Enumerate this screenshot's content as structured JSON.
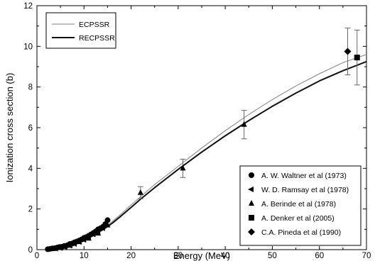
{
  "chart_data": {
    "type": "line",
    "xlabel": "Energy (MeV)",
    "ylabel": "Ionization cross section (b)",
    "xlim": [
      0,
      70
    ],
    "ylim": [
      0,
      12
    ],
    "x_ticks": [
      0,
      10,
      20,
      30,
      40,
      50,
      60,
      70
    ],
    "y_ticks": [
      0,
      2,
      4,
      6,
      8,
      10,
      12
    ],
    "x_tick_labels": [
      "0",
      "10",
      "20",
      "30",
      "40",
      "50",
      "60",
      "70"
    ],
    "y_tick_labels": [
      "0",
      "2",
      "4",
      "6",
      "8",
      "10",
      "12"
    ],
    "grid": false,
    "curves": [
      {
        "name": "ECPSSR",
        "style": "thin",
        "color": "#808080",
        "x": [
          2,
          3,
          4,
          5,
          6,
          8,
          10,
          12,
          14,
          16,
          18,
          20,
          22,
          25,
          30,
          35,
          40,
          45,
          50,
          55,
          60,
          65,
          70
        ],
        "y": [
          0.0,
          0.03,
          0.07,
          0.12,
          0.18,
          0.33,
          0.52,
          0.74,
          1.02,
          1.38,
          1.78,
          2.2,
          2.6,
          3.2,
          4.1,
          5.0,
          5.85,
          6.65,
          7.38,
          8.05,
          8.65,
          9.2,
          9.6
        ]
      },
      {
        "name": "RECPSSR",
        "style": "thick",
        "color": "#111111",
        "x": [
          2,
          3,
          4,
          5,
          6,
          8,
          10,
          12,
          14,
          16,
          18,
          20,
          22,
          25,
          30,
          35,
          40,
          45,
          50,
          55,
          60,
          65,
          70
        ],
        "y": [
          0.0,
          0.03,
          0.07,
          0.12,
          0.18,
          0.33,
          0.52,
          0.72,
          0.98,
          1.3,
          1.68,
          2.08,
          2.48,
          3.05,
          3.95,
          4.8,
          5.6,
          6.35,
          7.05,
          7.7,
          8.3,
          8.8,
          9.25
        ]
      }
    ],
    "series": [
      {
        "name": "A. W. Waltner et al (1973)",
        "marker": "circle",
        "x": [
          2.3,
          2.8,
          3.3,
          3.8,
          4.3,
          4.8,
          5.3,
          5.8,
          6.5,
          7.0,
          7.5,
          8.0,
          8.5,
          9.0,
          9.5,
          10.0,
          10.5,
          11.0,
          11.5,
          12.0,
          12.5,
          13.0,
          13.5,
          14.0,
          14.5,
          15.0
        ],
        "y": [
          0.02,
          0.04,
          0.06,
          0.07,
          0.1,
          0.13,
          0.14,
          0.18,
          0.22,
          0.28,
          0.3,
          0.36,
          0.4,
          0.45,
          0.5,
          0.58,
          0.62,
          0.68,
          0.75,
          0.82,
          0.9,
          1.0,
          1.05,
          1.12,
          1.25,
          1.45
        ]
      },
      {
        "name": "W. D. Ramsay et al (1978)",
        "marker": "triangle-left",
        "x": [
          4.0,
          5.0,
          6.0,
          7.0,
          8.0,
          9.0,
          10.0,
          11.0,
          12.0,
          13.0,
          14.0
        ],
        "y": [
          0.05,
          0.08,
          0.12,
          0.2,
          0.28,
          0.38,
          0.48,
          0.6,
          0.75,
          0.9,
          1.05
        ]
      },
      {
        "name": "A. Berinde et al (1978)",
        "marker": "triangle-up",
        "x": [
          5.0,
          7.0,
          9.0,
          11.0,
          13.0,
          15.0,
          22.0,
          31.0,
          44.0
        ],
        "y": [
          0.1,
          0.2,
          0.38,
          0.55,
          0.8,
          1.2,
          2.8,
          4.0,
          6.15
        ],
        "err": [
          0,
          0,
          0,
          0,
          0,
          0,
          0.3,
          0.45,
          0.7
        ]
      },
      {
        "name": "A. Denker et al (2005)",
        "marker": "square",
        "x": [
          68
        ],
        "y": [
          9.45
        ],
        "err": [
          1.35
        ]
      },
      {
        "name": "C.A. Pineda et al (1990)",
        "marker": "diamond",
        "x": [
          66
        ],
        "y": [
          9.75
        ],
        "err": [
          1.15
        ]
      }
    ],
    "legend": {
      "curves_position": "top-left",
      "markers_position": "bottom-right"
    }
  }
}
